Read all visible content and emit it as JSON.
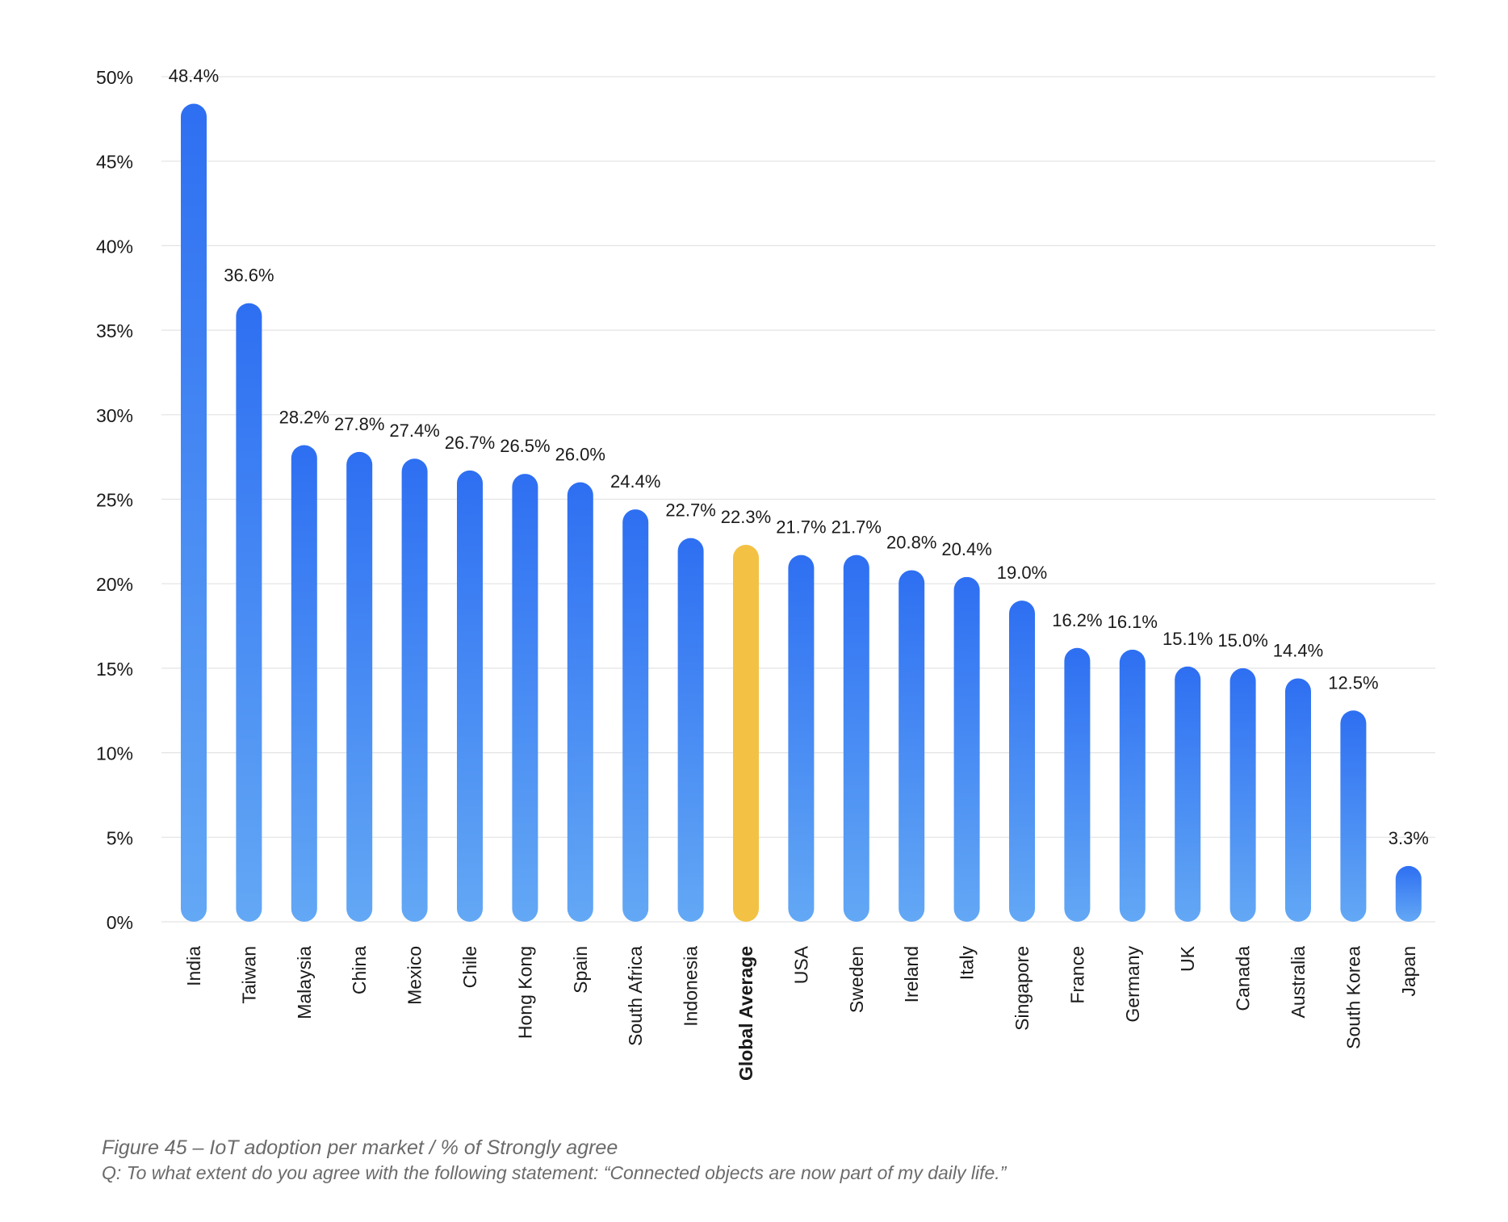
{
  "chart_data": {
    "type": "bar",
    "categories": [
      "India",
      "Taiwan",
      "Malaysia",
      "China",
      "Mexico",
      "Chile",
      "Hong Kong",
      "Spain",
      "South Africa",
      "Indonesia",
      "Global Average",
      "USA",
      "Sweden",
      "Ireland",
      "Italy",
      "Singapore",
      "France",
      "Germany",
      "UK",
      "Canada",
      "Australia",
      "South Korea",
      "Japan"
    ],
    "values": [
      48.4,
      36.6,
      28.2,
      27.8,
      27.4,
      26.7,
      26.5,
      26.0,
      24.4,
      22.7,
      22.3,
      21.7,
      21.7,
      20.8,
      20.4,
      19.0,
      16.2,
      16.1,
      15.1,
      15.0,
      14.4,
      12.5,
      3.3
    ],
    "value_labels": [
      "48.4%",
      "36.6%",
      "28.2%",
      "27.8%",
      "27.4%",
      "26.7%",
      "26.5%",
      "26.0%",
      "24.4%",
      "22.7%",
      "22.3%",
      "21.7%",
      "21.7%",
      "20.8%",
      "20.4%",
      "19.0%",
      "16.2%",
      "16.1%",
      "15.1%",
      "15.0%",
      "14.4%",
      "12.5%",
      "3.3%"
    ],
    "highlight_category": "Global Average",
    "ylim": [
      0,
      50
    ],
    "y_ticks": [
      "0%",
      "5%",
      "10%",
      "15%",
      "20%",
      "25%",
      "30%",
      "35%",
      "40%",
      "45%",
      "50%"
    ],
    "grid": true,
    "colors": {
      "bar_top": "#2e6ff2",
      "bar_bottom": "#63a8f5",
      "highlight": "#f3c244",
      "grid": "#e3e3e3",
      "text": "#1a1a1a",
      "caption": "#6b6b6b"
    }
  },
  "caption": {
    "title": "Figure 45 – IoT adoption per market / % of Strongly agree",
    "subtitle": "Q: To what extent do you agree with the following statement: “Connected objects are now part of my daily life.”"
  }
}
